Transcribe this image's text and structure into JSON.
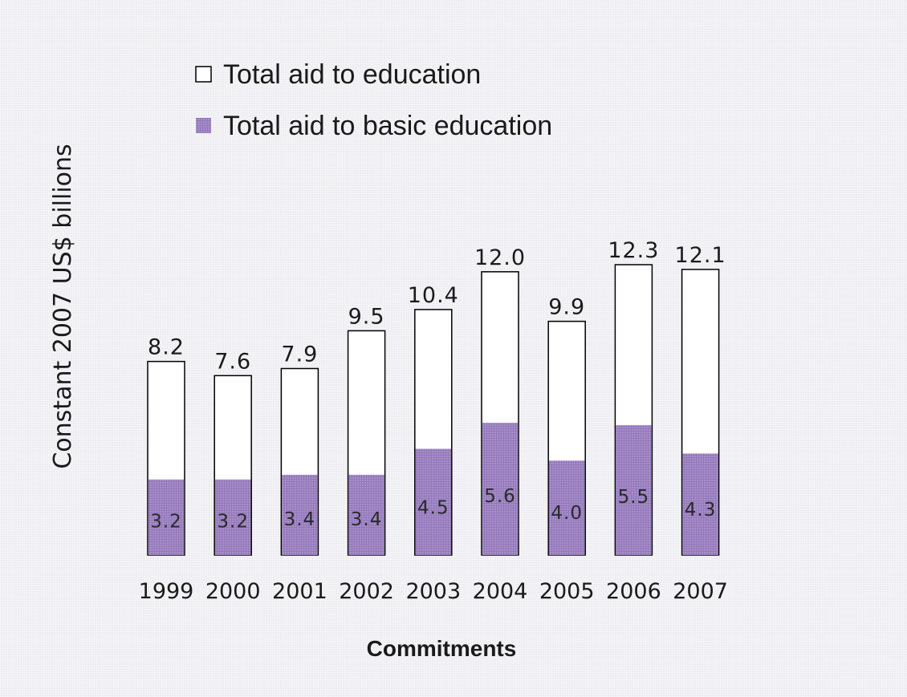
{
  "chart_data": {
    "type": "bar",
    "categories": [
      "1999",
      "2000",
      "2001",
      "2002",
      "2003",
      "2004",
      "2005",
      "2006",
      "2007"
    ],
    "series": [
      {
        "name": "Total aid to education",
        "values": [
          8.2,
          7.6,
          7.9,
          9.5,
          10.4,
          12.0,
          9.9,
          12.3,
          12.1
        ],
        "color": "#ffffff",
        "labels": [
          "8.2",
          "7.6",
          "7.9",
          "9.5",
          "10.4",
          "12.0",
          "9.9",
          "12.3",
          "12.1"
        ]
      },
      {
        "name": "Total aid to basic education",
        "values": [
          3.2,
          3.2,
          3.4,
          3.4,
          4.5,
          5.6,
          4.0,
          5.5,
          4.3
        ],
        "color": "#a990cc",
        "labels": [
          "3.2",
          "3.2",
          "3.4",
          "3.4",
          "4.5",
          "5.6",
          "4.0",
          "5.5",
          "4.3"
        ]
      }
    ],
    "ylabel": "Constant 2007 US$ billions",
    "xlabel": "Commitments",
    "ylim": [
      0,
      12.3
    ],
    "grid": false,
    "legend_position": "top-left",
    "bar_layout": "overlapped"
  }
}
